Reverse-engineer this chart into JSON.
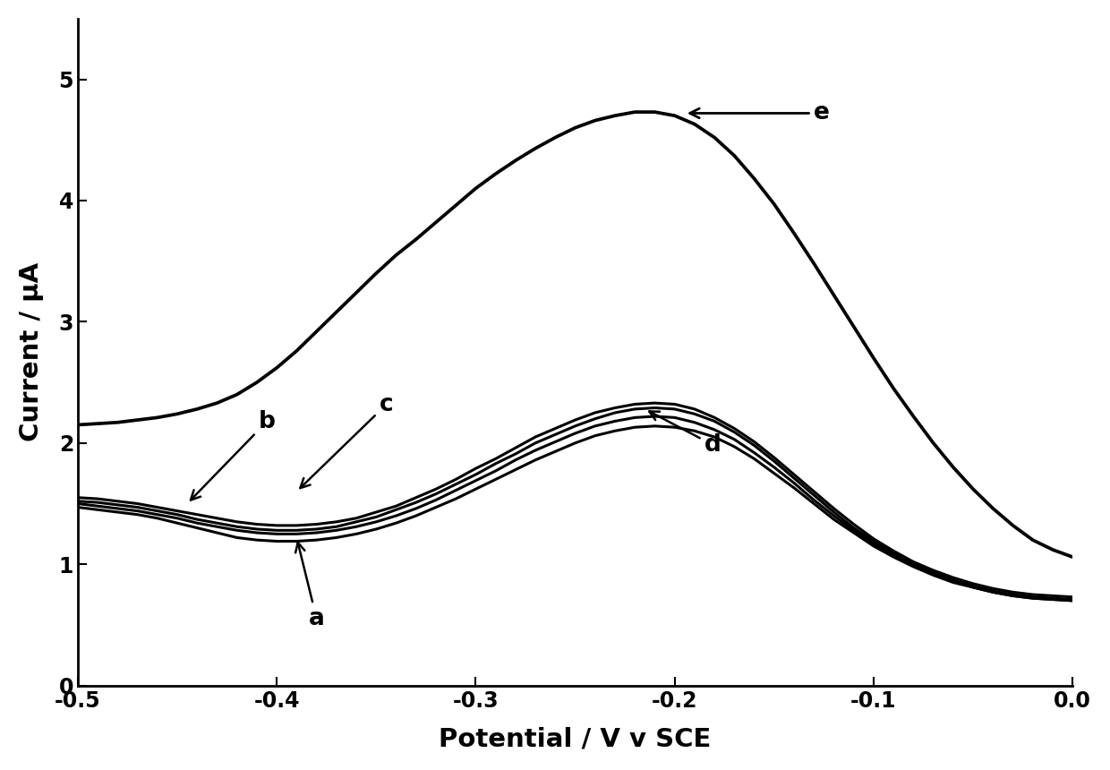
{
  "title": "",
  "xlabel": "Potential / V v SCE",
  "ylabel": "Current / μA",
  "xlim": [
    -0.5,
    0.0
  ],
  "ylim": [
    0,
    5.5
  ],
  "xticks": [
    -0.5,
    -0.4,
    -0.3,
    -0.2,
    -0.1,
    0.0
  ],
  "yticks": [
    0,
    1,
    2,
    3,
    4,
    5
  ],
  "background_color": "#ffffff",
  "line_color": "#000000",
  "curve_e_x": [
    -0.5,
    -0.49,
    -0.48,
    -0.47,
    -0.46,
    -0.45,
    -0.44,
    -0.43,
    -0.42,
    -0.41,
    -0.4,
    -0.39,
    -0.38,
    -0.37,
    -0.36,
    -0.35,
    -0.34,
    -0.33,
    -0.32,
    -0.31,
    -0.3,
    -0.29,
    -0.28,
    -0.27,
    -0.26,
    -0.25,
    -0.24,
    -0.23,
    -0.22,
    -0.21,
    -0.2,
    -0.19,
    -0.18,
    -0.17,
    -0.16,
    -0.15,
    -0.14,
    -0.13,
    -0.12,
    -0.11,
    -0.1,
    -0.09,
    -0.08,
    -0.07,
    -0.06,
    -0.05,
    -0.04,
    -0.03,
    -0.02,
    -0.01,
    0.0
  ],
  "curve_e_y": [
    2.15,
    2.16,
    2.17,
    2.19,
    2.21,
    2.24,
    2.28,
    2.33,
    2.4,
    2.5,
    2.62,
    2.76,
    2.92,
    3.08,
    3.24,
    3.4,
    3.55,
    3.68,
    3.82,
    3.96,
    4.1,
    4.22,
    4.33,
    4.43,
    4.52,
    4.6,
    4.66,
    4.7,
    4.73,
    4.73,
    4.7,
    4.63,
    4.52,
    4.37,
    4.18,
    3.97,
    3.73,
    3.48,
    3.22,
    2.96,
    2.7,
    2.45,
    2.22,
    2.0,
    1.8,
    1.62,
    1.46,
    1.32,
    1.2,
    1.12,
    1.06
  ],
  "curve_a_x": [
    -0.5,
    -0.49,
    -0.48,
    -0.47,
    -0.46,
    -0.45,
    -0.44,
    -0.43,
    -0.42,
    -0.41,
    -0.4,
    -0.39,
    -0.38,
    -0.37,
    -0.36,
    -0.35,
    -0.34,
    -0.33,
    -0.32,
    -0.31,
    -0.3,
    -0.29,
    -0.28,
    -0.27,
    -0.26,
    -0.25,
    -0.24,
    -0.23,
    -0.22,
    -0.21,
    -0.2,
    -0.19,
    -0.18,
    -0.17,
    -0.16,
    -0.15,
    -0.14,
    -0.13,
    -0.12,
    -0.11,
    -0.1,
    -0.09,
    -0.08,
    -0.07,
    -0.06,
    -0.05,
    -0.04,
    -0.03,
    -0.02,
    -0.01,
    0.0
  ],
  "curve_a_y": [
    1.47,
    1.45,
    1.43,
    1.41,
    1.38,
    1.34,
    1.3,
    1.26,
    1.22,
    1.2,
    1.19,
    1.19,
    1.2,
    1.22,
    1.25,
    1.29,
    1.34,
    1.4,
    1.47,
    1.54,
    1.62,
    1.7,
    1.78,
    1.86,
    1.93,
    2.0,
    2.06,
    2.1,
    2.13,
    2.14,
    2.13,
    2.1,
    2.05,
    1.97,
    1.87,
    1.75,
    1.63,
    1.5,
    1.37,
    1.26,
    1.15,
    1.06,
    0.98,
    0.91,
    0.85,
    0.81,
    0.77,
    0.74,
    0.72,
    0.71,
    0.7
  ],
  "curve_b_x": [
    -0.5,
    -0.49,
    -0.48,
    -0.47,
    -0.46,
    -0.45,
    -0.44,
    -0.43,
    -0.42,
    -0.41,
    -0.4,
    -0.39,
    -0.38,
    -0.37,
    -0.36,
    -0.35,
    -0.34,
    -0.33,
    -0.32,
    -0.31,
    -0.3,
    -0.29,
    -0.28,
    -0.27,
    -0.26,
    -0.25,
    -0.24,
    -0.23,
    -0.22,
    -0.21,
    -0.2,
    -0.19,
    -0.18,
    -0.17,
    -0.16,
    -0.15,
    -0.14,
    -0.13,
    -0.12,
    -0.11,
    -0.1,
    -0.09,
    -0.08,
    -0.07,
    -0.06,
    -0.05,
    -0.04,
    -0.03,
    -0.02,
    -0.01,
    0.0
  ],
  "curve_b_y": [
    1.5,
    1.48,
    1.46,
    1.44,
    1.41,
    1.38,
    1.34,
    1.31,
    1.28,
    1.26,
    1.25,
    1.25,
    1.26,
    1.28,
    1.31,
    1.35,
    1.4,
    1.46,
    1.53,
    1.61,
    1.69,
    1.77,
    1.86,
    1.94,
    2.01,
    2.08,
    2.14,
    2.18,
    2.21,
    2.22,
    2.21,
    2.17,
    2.11,
    2.03,
    1.92,
    1.8,
    1.67,
    1.53,
    1.4,
    1.28,
    1.17,
    1.08,
    0.99,
    0.92,
    0.86,
    0.81,
    0.77,
    0.74,
    0.72,
    0.71,
    0.7
  ],
  "curve_c_x": [
    -0.5,
    -0.49,
    -0.48,
    -0.47,
    -0.46,
    -0.45,
    -0.44,
    -0.43,
    -0.42,
    -0.41,
    -0.4,
    -0.39,
    -0.38,
    -0.37,
    -0.36,
    -0.35,
    -0.34,
    -0.33,
    -0.32,
    -0.31,
    -0.3,
    -0.29,
    -0.28,
    -0.27,
    -0.26,
    -0.25,
    -0.24,
    -0.23,
    -0.22,
    -0.21,
    -0.2,
    -0.19,
    -0.18,
    -0.17,
    -0.16,
    -0.15,
    -0.14,
    -0.13,
    -0.12,
    -0.11,
    -0.1,
    -0.09,
    -0.08,
    -0.07,
    -0.06,
    -0.05,
    -0.04,
    -0.03,
    -0.02,
    -0.01,
    0.0
  ],
  "curve_c_y": [
    1.52,
    1.51,
    1.49,
    1.47,
    1.44,
    1.41,
    1.37,
    1.34,
    1.31,
    1.29,
    1.28,
    1.28,
    1.29,
    1.31,
    1.35,
    1.39,
    1.45,
    1.51,
    1.58,
    1.66,
    1.74,
    1.83,
    1.91,
    2.0,
    2.07,
    2.14,
    2.2,
    2.25,
    2.28,
    2.29,
    2.28,
    2.24,
    2.18,
    2.09,
    1.98,
    1.85,
    1.71,
    1.57,
    1.43,
    1.3,
    1.19,
    1.09,
    1.01,
    0.93,
    0.87,
    0.82,
    0.78,
    0.75,
    0.73,
    0.72,
    0.71
  ],
  "curve_d_x": [
    -0.5,
    -0.49,
    -0.48,
    -0.47,
    -0.46,
    -0.45,
    -0.44,
    -0.43,
    -0.42,
    -0.41,
    -0.4,
    -0.39,
    -0.38,
    -0.37,
    -0.36,
    -0.35,
    -0.34,
    -0.33,
    -0.32,
    -0.31,
    -0.3,
    -0.29,
    -0.28,
    -0.27,
    -0.26,
    -0.25,
    -0.24,
    -0.23,
    -0.22,
    -0.21,
    -0.2,
    -0.19,
    -0.18,
    -0.17,
    -0.16,
    -0.15,
    -0.14,
    -0.13,
    -0.12,
    -0.11,
    -0.1,
    -0.09,
    -0.08,
    -0.07,
    -0.06,
    -0.05,
    -0.04,
    -0.03,
    -0.02,
    -0.01,
    0.0
  ],
  "curve_d_y": [
    1.55,
    1.54,
    1.52,
    1.5,
    1.47,
    1.44,
    1.41,
    1.38,
    1.35,
    1.33,
    1.32,
    1.32,
    1.33,
    1.35,
    1.38,
    1.43,
    1.48,
    1.55,
    1.62,
    1.7,
    1.79,
    1.87,
    1.96,
    2.05,
    2.12,
    2.19,
    2.25,
    2.29,
    2.32,
    2.33,
    2.32,
    2.28,
    2.21,
    2.12,
    2.01,
    1.88,
    1.74,
    1.6,
    1.46,
    1.33,
    1.21,
    1.11,
    1.02,
    0.95,
    0.89,
    0.84,
    0.8,
    0.77,
    0.75,
    0.74,
    0.73
  ]
}
